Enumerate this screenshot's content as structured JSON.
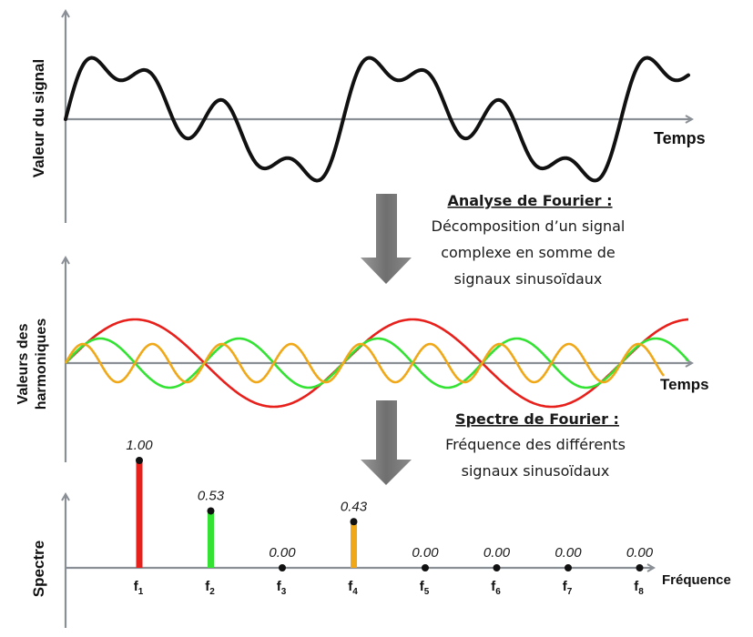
{
  "panel_signal": {
    "ylabel": "Valeur du signal",
    "xlabel": "Temps"
  },
  "panel_harmonics": {
    "ylabel_line1": "Valeurs des",
    "ylabel_line2": "harmoniques",
    "xlabel": "Temps"
  },
  "fourier_analysis": {
    "title": "Analyse de Fourier :",
    "line1": "Décomposition d’un signal",
    "line2": "complexe en somme de",
    "line3": "signaux sinusoïdaux"
  },
  "fourier_spectrum": {
    "title": "Spectre de Fourier :",
    "line1": "Fréquence des différents",
    "line2": "signaux sinusoïdaux"
  },
  "panel_spectrum": {
    "ylabel": "Spectre",
    "xlabel": "Fréquence"
  },
  "colors": {
    "f1": "#e8201c",
    "f2": "#33e233",
    "f4": "#f0a818",
    "signal": "#111111",
    "axis": "#8a8f96",
    "arrow": "#7d7d7d"
  },
  "chart_data": {
    "type": "bar",
    "categories": [
      "f1",
      "f2",
      "f3",
      "f4",
      "f5",
      "f6",
      "f7",
      "f8"
    ],
    "value_labels": [
      "1.00",
      "0.53",
      "0.00",
      "0.43",
      "0.00",
      "0.00",
      "0.00",
      "0.00"
    ],
    "values": [
      1.0,
      0.53,
      0.0,
      0.43,
      0.0,
      0.0,
      0.0,
      0.0
    ],
    "bar_colors": [
      "#e8201c",
      "#33e233",
      "",
      "#f0a818",
      "",
      "",
      "",
      ""
    ],
    "xlabel": "Fréquence",
    "ylabel": "Spectre"
  }
}
